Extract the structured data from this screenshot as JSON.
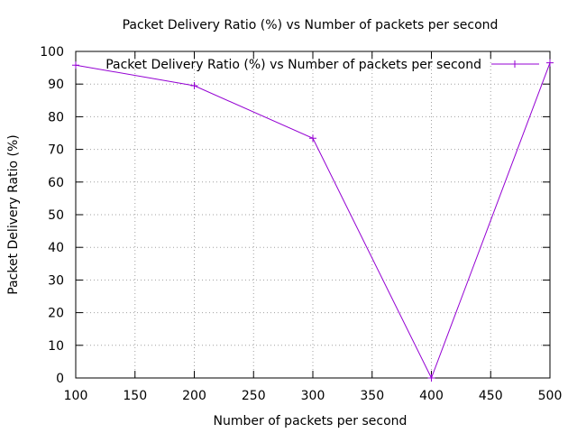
{
  "chart_data": {
    "type": "line",
    "title": "Packet Delivery Ratio (%) vs Number of packets per second",
    "xlabel": "Number of packets per second",
    "ylabel": "Packet Delivery Ratio (%)",
    "xlim": [
      100,
      500
    ],
    "ylim": [
      0,
      100
    ],
    "xticks": [
      100,
      150,
      200,
      250,
      300,
      350,
      400,
      450,
      500
    ],
    "yticks": [
      0,
      10,
      20,
      30,
      40,
      50,
      60,
      70,
      80,
      90,
      100
    ],
    "grid": true,
    "legend_position": "top-right",
    "series": [
      {
        "name": "Packet Delivery Ratio (%) vs Number of packets per second",
        "color": "#9400d3",
        "marker": "plus",
        "x": [
          100,
          200,
          300,
          400,
          500
        ],
        "y": [
          95.8,
          89.5,
          73.4,
          0,
          96.5
        ]
      }
    ]
  }
}
